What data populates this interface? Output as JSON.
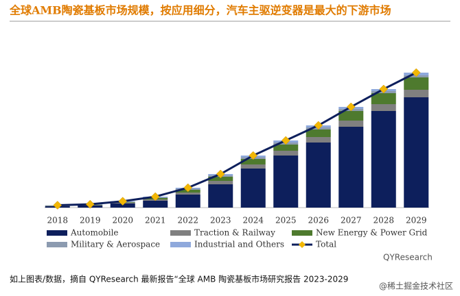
{
  "chart_data": {
    "type": "bar",
    "title": "全球AMB陶瓷基板市场规模，按应用细分，汽车主驱逆变器是最大的下游市场",
    "categories": [
      "2018",
      "2019",
      "2020",
      "2021",
      "2022",
      "2023",
      "2024",
      "2025",
      "2026",
      "2027",
      "2028",
      "2029"
    ],
    "series": [
      {
        "name": "Automobile",
        "color": "#0d1f5c",
        "values": [
          2,
          3,
          6,
          10,
          19,
          34,
          57,
          76,
          95,
          118,
          141,
          161
        ]
      },
      {
        "name": "Traction & Railway",
        "color": "#808080",
        "values": [
          0.5,
          0.6,
          1,
          2,
          3,
          5,
          6,
          7,
          8,
          9,
          10,
          11
        ]
      },
      {
        "name": "New Energy & Power Grid",
        "color": "#4e7a2e",
        "values": [
          0.3,
          0.4,
          0.8,
          2,
          4,
          6,
          8,
          9,
          11,
          14,
          16,
          18
        ]
      },
      {
        "name": "Military & Aerospace",
        "color": "#8c9bb0",
        "values": [
          0.3,
          0.4,
          0.7,
          1,
          1.5,
          2,
          2.5,
          3,
          3,
          3,
          3,
          3
        ]
      },
      {
        "name": "Industrial and Others",
        "color": "#8fa9dc",
        "values": [
          0.4,
          0.5,
          0.8,
          1,
          1.5,
          2,
          2.5,
          3,
          3,
          3,
          3,
          4
        ]
      },
      {
        "name": "Total",
        "type": "line",
        "color": "#0d1f5c",
        "marker_color": "#f2b705",
        "values": [
          3.5,
          4.9,
          9.3,
          16,
          29,
          49,
          76,
          98,
          120,
          147,
          173,
          197
        ]
      }
    ]
  },
  "footer": {
    "text": "如上图表/数据，摘自 QYResearch 最新报告“全球 AMB 陶瓷基板市场研究报告 2023-2029",
    "brand": "QYResearch",
    "credit": "@稀土掘金技术社区"
  }
}
